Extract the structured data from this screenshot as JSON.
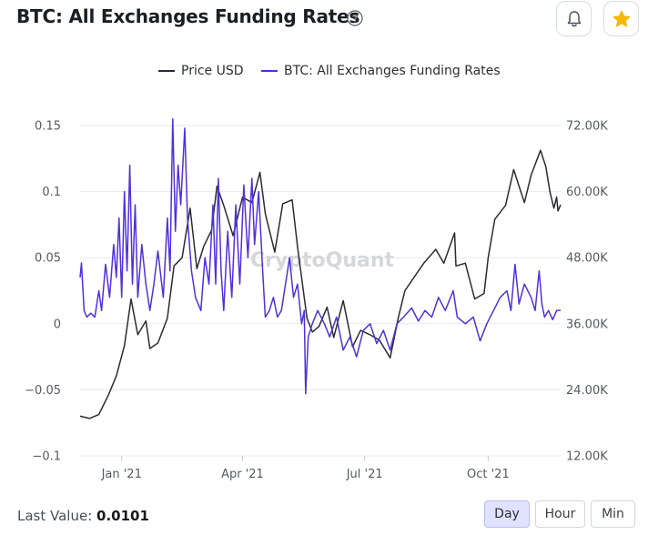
{
  "header": {
    "title": "BTC: All Exchanges Funding Rates",
    "help_icon": "question-circle-icon",
    "bell_icon": "bell-icon",
    "star_icon": "star-icon",
    "star_color": "#f5b800"
  },
  "watermark": "CryptoQuant",
  "footer": {
    "last_value_label": "Last Value:",
    "last_value": "0.0101",
    "ranges": [
      "Day",
      "Hour",
      "Min"
    ],
    "active_range": "Day",
    "active_color": "#dfe3ff"
  },
  "chart_data": {
    "type": "line",
    "title": "BTC: All Exchanges Funding Rates",
    "x_range": [
      "2020-12-01",
      "2021-11-24"
    ],
    "x_ticks": [
      {
        "date": "2021-01-01",
        "label": "Jan '21"
      },
      {
        "date": "2021-04-01",
        "label": "Apr '21"
      },
      {
        "date": "2021-07-01",
        "label": "Jul '21"
      },
      {
        "date": "2021-10-01",
        "label": "Oct '21"
      }
    ],
    "y_left": {
      "range": [
        -0.1,
        0.15
      ],
      "ticks": [
        0.15,
        0.1,
        0.05,
        0,
        -0.05,
        -0.1
      ],
      "tick_labels": [
        "0.15",
        "0.1",
        "0.05",
        "0",
        "−0.05",
        "−0.1"
      ]
    },
    "y_right": {
      "range": [
        12000,
        72000
      ],
      "ticks": [
        72000,
        60000,
        48000,
        36000,
        24000,
        12000
      ],
      "tick_labels": [
        "72.00K",
        "60.00K",
        "48.00K",
        "36.00K",
        "24.00K",
        "12.00K"
      ]
    },
    "grid": true,
    "legend_position": "top",
    "series": [
      {
        "name": "Price USD",
        "axis": "right",
        "color": "#2b2b33",
        "points": [
          [
            "2020-12-01",
            19200
          ],
          [
            "2020-12-08",
            18800
          ],
          [
            "2020-12-15",
            19500
          ],
          [
            "2020-12-22",
            23000
          ],
          [
            "2020-12-28",
            26500
          ],
          [
            "2021-01-03",
            32000
          ],
          [
            "2021-01-08",
            40500
          ],
          [
            "2021-01-13",
            34000
          ],
          [
            "2021-01-19",
            36500
          ],
          [
            "2021-01-22",
            31500
          ],
          [
            "2021-01-28",
            32500
          ],
          [
            "2021-02-04",
            37000
          ],
          [
            "2021-02-09",
            46500
          ],
          [
            "2021-02-15",
            48000
          ],
          [
            "2021-02-21",
            57000
          ],
          [
            "2021-02-26",
            46000
          ],
          [
            "2021-03-03",
            50000
          ],
          [
            "2021-03-09",
            53000
          ],
          [
            "2021-03-13",
            61000
          ],
          [
            "2021-03-18",
            57500
          ],
          [
            "2021-03-25",
            52000
          ],
          [
            "2021-04-01",
            59000
          ],
          [
            "2021-04-08",
            58000
          ],
          [
            "2021-04-14",
            63500
          ],
          [
            "2021-04-18",
            56000
          ],
          [
            "2021-04-25",
            49000
          ],
          [
            "2021-05-01",
            57800
          ],
          [
            "2021-05-08",
            58500
          ],
          [
            "2021-05-12",
            50000
          ],
          [
            "2021-05-19",
            37000
          ],
          [
            "2021-05-23",
            34500
          ],
          [
            "2021-05-28",
            35500
          ],
          [
            "2021-06-03",
            39000
          ],
          [
            "2021-06-08",
            33500
          ],
          [
            "2021-06-15",
            40200
          ],
          [
            "2021-06-22",
            31800
          ],
          [
            "2021-06-28",
            34800
          ],
          [
            "2021-07-05",
            34000
          ],
          [
            "2021-07-12",
            33000
          ],
          [
            "2021-07-20",
            29800
          ],
          [
            "2021-07-26",
            37000
          ],
          [
            "2021-07-31",
            42000
          ],
          [
            "2021-08-07",
            44500
          ],
          [
            "2021-08-14",
            47000
          ],
          [
            "2021-08-23",
            49500
          ],
          [
            "2021-08-29",
            47000
          ],
          [
            "2021-09-06",
            52500
          ],
          [
            "2021-09-07",
            46500
          ],
          [
            "2021-09-14",
            47000
          ],
          [
            "2021-09-21",
            40500
          ],
          [
            "2021-09-28",
            41500
          ],
          [
            "2021-10-01",
            48000
          ],
          [
            "2021-10-06",
            55000
          ],
          [
            "2021-10-14",
            57500
          ],
          [
            "2021-10-20",
            64000
          ],
          [
            "2021-10-24",
            61000
          ],
          [
            "2021-10-28",
            58000
          ],
          [
            "2021-11-02",
            63000
          ],
          [
            "2021-11-09",
            67500
          ],
          [
            "2021-11-13",
            64500
          ],
          [
            "2021-11-16",
            60000
          ],
          [
            "2021-11-19",
            57000
          ],
          [
            "2021-11-21",
            59000
          ],
          [
            "2021-11-22",
            56500
          ],
          [
            "2021-11-24",
            57600
          ]
        ]
      },
      {
        "name": "BTC: All Exchanges Funding Rates",
        "axis": "left",
        "color": "#4f31dd",
        "points": [
          [
            "2020-12-01",
            0.035
          ],
          [
            "2020-12-02",
            0.046
          ],
          [
            "2020-12-04",
            0.01
          ],
          [
            "2020-12-06",
            0.005
          ],
          [
            "2020-12-09",
            0.008
          ],
          [
            "2020-12-12",
            0.005
          ],
          [
            "2020-12-15",
            0.025
          ],
          [
            "2020-12-17",
            0.01
          ],
          [
            "2020-12-20",
            0.045
          ],
          [
            "2020-12-23",
            0.02
          ],
          [
            "2020-12-26",
            0.06
          ],
          [
            "2020-12-28",
            0.035
          ],
          [
            "2020-12-30",
            0.08
          ],
          [
            "2021-01-01",
            0.02
          ],
          [
            "2021-01-03",
            0.1
          ],
          [
            "2021-01-05",
            0.04
          ],
          [
            "2021-01-07",
            0.12
          ],
          [
            "2021-01-09",
            0.03
          ],
          [
            "2021-01-11",
            0.09
          ],
          [
            "2021-01-13",
            0.02
          ],
          [
            "2021-01-16",
            0.06
          ],
          [
            "2021-01-19",
            0.03
          ],
          [
            "2021-01-22",
            0.01
          ],
          [
            "2021-01-25",
            0.03
          ],
          [
            "2021-01-28",
            0.055
          ],
          [
            "2021-02-01",
            0.02
          ],
          [
            "2021-02-04",
            0.08
          ],
          [
            "2021-02-06",
            0.04
          ],
          [
            "2021-02-08",
            0.155
          ],
          [
            "2021-02-10",
            0.07
          ],
          [
            "2021-02-12",
            0.12
          ],
          [
            "2021-02-14",
            0.09
          ],
          [
            "2021-02-17",
            0.148
          ],
          [
            "2021-02-19",
            0.08
          ],
          [
            "2021-02-22",
            0.04
          ],
          [
            "2021-02-25",
            0.02
          ],
          [
            "2021-03-01",
            0.01
          ],
          [
            "2021-03-04",
            0.05
          ],
          [
            "2021-03-07",
            0.03
          ],
          [
            "2021-03-10",
            0.09
          ],
          [
            "2021-03-12",
            0.03
          ],
          [
            "2021-03-14",
            0.11
          ],
          [
            "2021-03-16",
            0.04
          ],
          [
            "2021-03-18",
            0.01
          ],
          [
            "2021-03-21",
            0.07
          ],
          [
            "2021-03-24",
            0.02
          ],
          [
            "2021-03-27",
            0.09
          ],
          [
            "2021-03-30",
            0.03
          ],
          [
            "2021-04-02",
            0.105
          ],
          [
            "2021-04-05",
            0.05
          ],
          [
            "2021-04-08",
            0.11
          ],
          [
            "2021-04-10",
            0.06
          ],
          [
            "2021-04-13",
            0.1
          ],
          [
            "2021-04-16",
            0.04
          ],
          [
            "2021-04-18",
            0.005
          ],
          [
            "2021-04-21",
            0.01
          ],
          [
            "2021-04-24",
            0.02
          ],
          [
            "2021-04-27",
            0.005
          ],
          [
            "2021-04-30",
            0.01
          ],
          [
            "2021-05-03",
            0.03
          ],
          [
            "2021-05-06",
            0.05
          ],
          [
            "2021-05-09",
            0.02
          ],
          [
            "2021-05-12",
            0.03
          ],
          [
            "2021-05-15",
            0.0
          ],
          [
            "2021-05-17",
            0.01
          ],
          [
            "2021-05-18",
            -0.053
          ],
          [
            "2021-05-20",
            -0.01
          ],
          [
            "2021-05-23",
            0.0
          ],
          [
            "2021-05-27",
            0.01
          ],
          [
            "2021-06-01",
            0.0
          ],
          [
            "2021-06-05",
            -0.01
          ],
          [
            "2021-06-10",
            0.005
          ],
          [
            "2021-06-15",
            -0.02
          ],
          [
            "2021-06-20",
            -0.01
          ],
          [
            "2021-06-25",
            -0.025
          ],
          [
            "2021-06-30",
            -0.005
          ],
          [
            "2021-07-05",
            0.0
          ],
          [
            "2021-07-10",
            -0.015
          ],
          [
            "2021-07-15",
            -0.005
          ],
          [
            "2021-07-20",
            -0.02
          ],
          [
            "2021-07-25",
            0.0
          ],
          [
            "2021-07-30",
            0.005
          ],
          [
            "2021-08-05",
            0.012
          ],
          [
            "2021-08-10",
            0.002
          ],
          [
            "2021-08-15",
            0.01
          ],
          [
            "2021-08-20",
            0.005
          ],
          [
            "2021-08-25",
            0.02
          ],
          [
            "2021-08-30",
            0.01
          ],
          [
            "2021-09-05",
            0.025
          ],
          [
            "2021-09-08",
            0.005
          ],
          [
            "2021-09-14",
            0.0
          ],
          [
            "2021-09-20",
            0.005
          ],
          [
            "2021-09-25",
            -0.013
          ],
          [
            "2021-09-30",
            0.0
          ],
          [
            "2021-10-05",
            0.01
          ],
          [
            "2021-10-10",
            0.02
          ],
          [
            "2021-10-15",
            0.025
          ],
          [
            "2021-10-18",
            0.01
          ],
          [
            "2021-10-21",
            0.045
          ],
          [
            "2021-10-24",
            0.015
          ],
          [
            "2021-10-28",
            0.03
          ],
          [
            "2021-11-02",
            0.02
          ],
          [
            "2021-11-05",
            0.01
          ],
          [
            "2021-11-08",
            0.04
          ],
          [
            "2021-11-10",
            0.015
          ],
          [
            "2021-11-12",
            0.005
          ],
          [
            "2021-11-15",
            0.01
          ],
          [
            "2021-11-18",
            0.003
          ],
          [
            "2021-11-21",
            0.01
          ],
          [
            "2021-11-24",
            0.0101
          ]
        ]
      }
    ]
  }
}
